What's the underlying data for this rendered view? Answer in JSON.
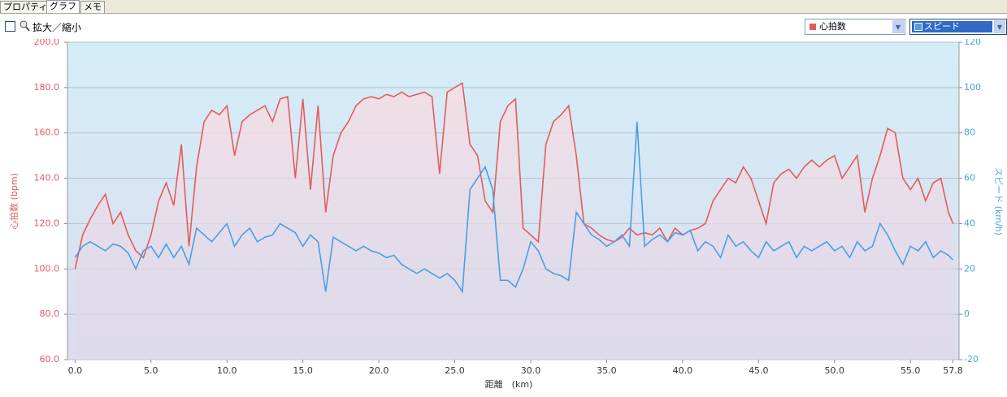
{
  "tabs": [
    "プロパティ",
    "グラフ",
    "メモ"
  ],
  "toolbar": {
    "zoom_label": "拡大／縮小"
  },
  "chart_data": {
    "type": "line",
    "x_label": "距離　(km)",
    "y_label": "心拍数 (bpm)",
    "y2_label": "スピード (km/h)",
    "xlim": [
      -0.5,
      58.2
    ],
    "ylim": [
      60,
      200
    ],
    "y2lim": [
      -20,
      120
    ],
    "xticks": [
      {
        "value": 0,
        "label": "0.0"
      },
      {
        "value": 5,
        "label": "5.0"
      },
      {
        "value": 10,
        "label": "10.0"
      },
      {
        "value": 15,
        "label": "15.0"
      },
      {
        "value": 20,
        "label": "20.0"
      },
      {
        "value": 25,
        "label": "25.0"
      },
      {
        "value": 30,
        "label": "30.0"
      },
      {
        "value": 35,
        "label": "35.0"
      },
      {
        "value": 40,
        "label": "40.0"
      },
      {
        "value": 45,
        "label": "45.0"
      },
      {
        "value": 50,
        "label": "50.0"
      },
      {
        "value": 55,
        "label": "55.0"
      },
      {
        "value": 57.8,
        "label": "57.8"
      }
    ],
    "yticks": [
      {
        "value": 60,
        "label": "60.0"
      },
      {
        "value": 80,
        "label": "80.0"
      },
      {
        "value": 100,
        "label": "100.0"
      },
      {
        "value": 120,
        "label": "120.0"
      },
      {
        "value": 140,
        "label": "140.0"
      },
      {
        "value": 160,
        "label": "160.0"
      },
      {
        "value": 180,
        "label": "180.0"
      },
      {
        "value": 200,
        "label": "200.0"
      }
    ],
    "y2ticks": [
      -20,
      0,
      20,
      40,
      60,
      80,
      100,
      120
    ],
    "grid": true,
    "x": [
      0,
      0.5,
      1,
      1.5,
      2,
      2.5,
      3,
      3.5,
      4,
      4.5,
      5,
      5.5,
      6,
      6.5,
      7,
      7.5,
      8,
      8.5,
      9,
      9.5,
      10,
      10.5,
      11,
      11.5,
      12,
      12.5,
      13,
      13.5,
      14,
      14.5,
      15,
      15.5,
      16,
      16.5,
      17,
      17.5,
      18,
      18.5,
      19,
      19.5,
      20,
      20.5,
      21,
      21.5,
      22,
      22.5,
      23,
      23.5,
      24,
      24.5,
      25,
      25.5,
      26,
      26.5,
      27,
      27.5,
      28,
      28.5,
      29,
      29.5,
      30,
      30.5,
      31,
      31.5,
      32,
      32.5,
      33,
      33.5,
      34,
      34.5,
      35,
      35.5,
      36,
      36.5,
      37,
      37.5,
      38,
      38.5,
      39,
      39.5,
      40,
      40.5,
      41,
      41.5,
      42,
      42.5,
      43,
      43.5,
      44,
      44.5,
      45,
      45.5,
      46,
      46.5,
      47,
      47.5,
      48,
      48.5,
      49,
      49.5,
      50,
      50.5,
      51,
      51.5,
      52,
      52.5,
      53,
      53.5,
      54,
      54.5,
      55,
      55.5,
      56,
      56.5,
      57,
      57.5,
      57.8
    ],
    "series": [
      {
        "name": "心拍数",
        "color": "#e25c5c",
        "axis": "y",
        "values": [
          100,
          115,
          122,
          128,
          133,
          120,
          125,
          115,
          108,
          105,
          115,
          130,
          138,
          128,
          155,
          110,
          145,
          165,
          170,
          168,
          172,
          150,
          165,
          168,
          170,
          172,
          165,
          175,
          176,
          140,
          175,
          135,
          172,
          125,
          150,
          160,
          165,
          172,
          175,
          176,
          175,
          177,
          176,
          178,
          176,
          177,
          178,
          176,
          142,
          178,
          180,
          182,
          155,
          150,
          130,
          125,
          165,
          172,
          175,
          118,
          115,
          112,
          155,
          165,
          168,
          172,
          150,
          120,
          118,
          115,
          113,
          112,
          114,
          118,
          115,
          116,
          115,
          118,
          112,
          118,
          115,
          117,
          118,
          120,
          130,
          135,
          140,
          138,
          145,
          140,
          130,
          120,
          138,
          142,
          144,
          140,
          145,
          148,
          145,
          148,
          150,
          140,
          145,
          150,
          125,
          140,
          150,
          162,
          160,
          140,
          135,
          140,
          130,
          138,
          140,
          125,
          120
        ]
      },
      {
        "name": "スピード",
        "color": "#4a9fe2",
        "axis": "y2",
        "values": [
          25,
          30,
          32,
          30,
          28,
          31,
          30,
          27,
          20,
          28,
          30,
          25,
          31,
          25,
          30,
          22,
          38,
          35,
          32,
          36,
          40,
          30,
          35,
          38,
          32,
          34,
          35,
          40,
          38,
          36,
          30,
          35,
          32,
          10,
          34,
          32,
          30,
          28,
          30,
          28,
          27,
          25,
          26,
          22,
          20,
          18,
          20,
          18,
          16,
          18,
          15,
          10,
          55,
          60,
          65,
          55,
          15,
          15,
          12,
          20,
          32,
          28,
          20,
          18,
          17,
          15,
          45,
          40,
          35,
          33,
          30,
          32,
          35,
          30,
          85,
          30,
          33,
          35,
          32,
          36,
          35,
          37,
          28,
          32,
          30,
          25,
          35,
          30,
          32,
          28,
          25,
          32,
          28,
          30,
          32,
          25,
          30,
          28,
          30,
          32,
          28,
          30,
          25,
          32,
          28,
          30,
          40,
          35,
          28,
          22,
          30,
          28,
          32,
          25,
          28,
          26,
          24
        ]
      }
    ]
  }
}
